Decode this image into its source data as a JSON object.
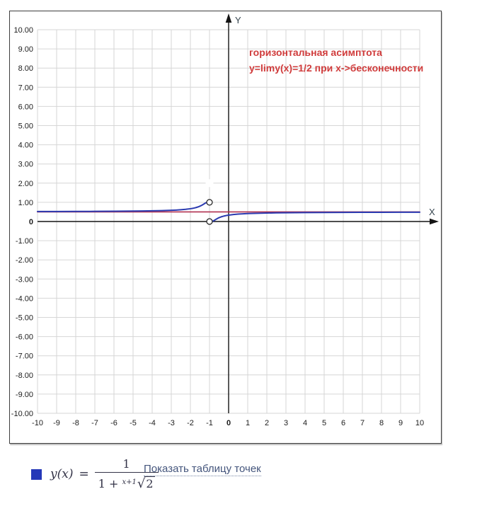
{
  "chart_data": {
    "type": "line",
    "xlabel": "X",
    "ylabel": "Y",
    "xlim": [
      -10,
      10
    ],
    "ylim": [
      -10,
      10
    ],
    "grid": true,
    "x_tick_labels": [
      "-10",
      "-9",
      "-8",
      "-7",
      "-6",
      "-5",
      "-4",
      "-3",
      "-2",
      "-1",
      "0",
      "1",
      "2",
      "3",
      "4",
      "5",
      "6",
      "7",
      "8",
      "9",
      "10"
    ],
    "y_tick_labels": [
      "10.00",
      "9.00",
      "8.00",
      "7.00",
      "6.00",
      "5.00",
      "4.00",
      "3.00",
      "2.00",
      "1.00",
      "0",
      "-1.00",
      "-2.00",
      "-3.00",
      "-4.00",
      "-5.00",
      "-6.00",
      "-7.00",
      "-8.00",
      "-9.00",
      "-10.00"
    ],
    "annotation": {
      "line1": "горизонтальная асимптота",
      "line2": "y=limy(x)=1/2 при x->бесконечности",
      "color": "#d03c3c"
    },
    "white_marker": [
      -1,
      2
    ],
    "series": [
      {
        "id": "asymptote-line",
        "name": "горизонтальная асимптота y=1/2",
        "color": "#b13050",
        "width": 1.6,
        "branches": [
          [
            [
              -10,
              0.5
            ],
            [
              10,
              0.5
            ]
          ]
        ],
        "open_points": []
      },
      {
        "id": "function-curve",
        "name": "y(x)=1/(1+2^(1/(x+1)))",
        "color": "#2b3ab0",
        "width": 2,
        "branches": [
          [
            [
              -10,
              0.5192
            ],
            [
              -9,
              0.5216
            ],
            [
              -8,
              0.5247
            ],
            [
              -7,
              0.5288
            ],
            [
              -6,
              0.5346
            ],
            [
              -5,
              0.5432
            ],
            [
              -4.5,
              0.5493
            ],
            [
              -4,
              0.5575
            ],
            [
              -3.5,
              0.5689
            ],
            [
              -3,
              0.5858
            ],
            [
              -2.75,
              0.597
            ],
            [
              -2.5,
              0.6135
            ],
            [
              -2.25,
              0.635
            ],
            [
              -2,
              0.6667
            ],
            [
              -1.9,
              0.6836
            ],
            [
              -1.8,
              0.704
            ],
            [
              -1.7,
              0.7291
            ],
            [
              -1.6,
              0.7605
            ],
            [
              -1.5,
              0.8
            ],
            [
              -1.4,
              0.8497
            ],
            [
              -1.3,
              0.9097
            ],
            [
              -1.25,
              0.9412
            ],
            [
              -1.2,
              0.9697
            ],
            [
              -1.16,
              0.987
            ]
          ],
          [
            [
              -0.85,
              0.0097
            ],
            [
              -0.8,
              0.0303
            ],
            [
              -0.75,
              0.0588
            ],
            [
              -0.7,
              0.0903
            ],
            [
              -0.65,
              0.121
            ],
            [
              -0.6,
              0.1502
            ],
            [
              -0.55,
              0.1765
            ],
            [
              -0.5,
              0.2
            ],
            [
              -0.4,
              0.2395
            ],
            [
              -0.3,
              0.2709
            ],
            [
              -0.2,
              0.296
            ],
            [
              -0.1,
              0.3165
            ],
            [
              0,
              0.3333
            ],
            [
              0.25,
              0.3649
            ],
            [
              0.5,
              0.3866
            ],
            [
              0.75,
              0.4023
            ],
            [
              1,
              0.4142
            ],
            [
              1.5,
              0.4311
            ],
            [
              2,
              0.4425
            ],
            [
              2.5,
              0.4505
            ],
            [
              3,
              0.4568
            ],
            [
              3.5,
              0.4617
            ],
            [
              4,
              0.4654
            ],
            [
              5,
              0.4711
            ],
            [
              6,
              0.4753
            ],
            [
              7,
              0.4784
            ],
            [
              8,
              0.4807
            ],
            [
              9,
              0.4827
            ],
            [
              10,
              0.4843
            ]
          ]
        ],
        "open_points": [
          [
            -1,
            1
          ],
          [
            -1,
            0
          ]
        ]
      }
    ]
  },
  "legend": {
    "swatch_color": "#2538b8",
    "formula": {
      "lhs": "y(x)",
      "eq": "=",
      "numerator": "1",
      "den_prefix": "1 +",
      "root_index": "x+1",
      "root_sign": "√",
      "radicand": "2"
    },
    "link_label": "Показать таблицу точек"
  },
  "colors": {
    "grid": "#d6d6d6",
    "axes": "#141414",
    "tick_text": "#1c1c1c",
    "axis_letter": "#36454f"
  }
}
